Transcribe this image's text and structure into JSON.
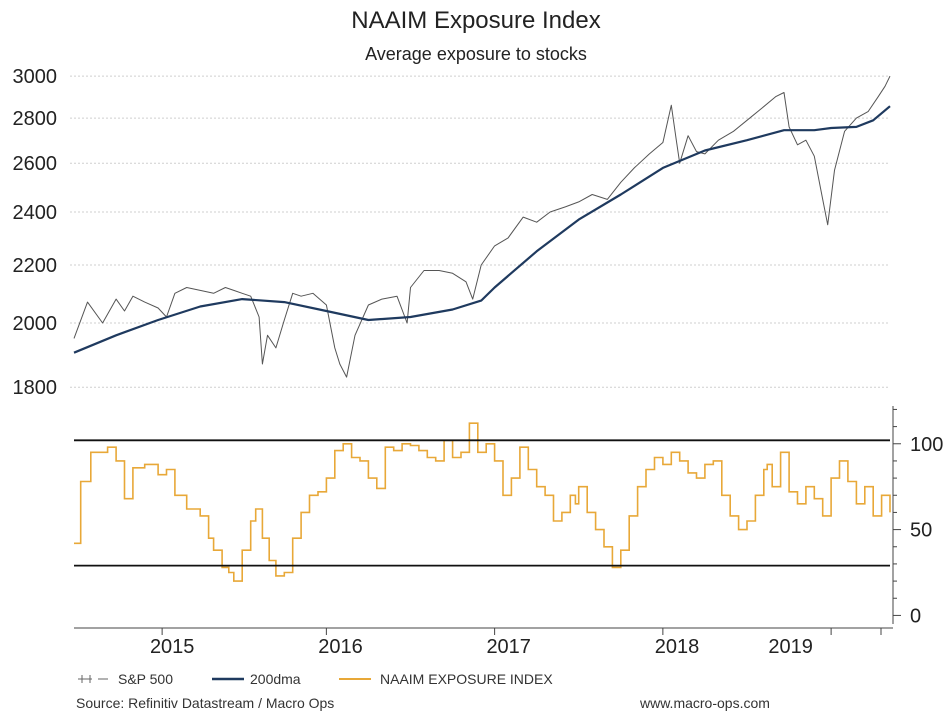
{
  "chart_data": [
    {
      "type": "line",
      "title": "NAAIM Exposure Index",
      "subtitle": "Average exposure to stocks",
      "ylim": [
        1780,
        3050
      ],
      "yticks": [
        1800,
        2000,
        2200,
        2400,
        2600,
        2800,
        3000
      ],
      "x_range": [
        2014.5,
        2019.35
      ],
      "series": [
        {
          "name": "S&P 500",
          "color": "#555555",
          "x": [
            2014.5,
            2014.58,
            2014.67,
            2014.75,
            2014.8,
            2014.85,
            2014.92,
            2015.0,
            2015.05,
            2015.1,
            2015.17,
            2015.25,
            2015.33,
            2015.4,
            2015.45,
            2015.5,
            2015.55,
            2015.6,
            2015.62,
            2015.65,
            2015.7,
            2015.75,
            2015.8,
            2015.85,
            2015.92,
            2016.0,
            2016.05,
            2016.08,
            2016.12,
            2016.17,
            2016.25,
            2016.33,
            2016.42,
            2016.48,
            2016.5,
            2016.58,
            2016.67,
            2016.75,
            2016.83,
            2016.87,
            2016.92,
            2017.0,
            2017.08,
            2017.17,
            2017.25,
            2017.33,
            2017.42,
            2017.5,
            2017.58,
            2017.67,
            2017.75,
            2017.83,
            2017.92,
            2018.0,
            2018.05,
            2018.08,
            2018.1,
            2018.15,
            2018.2,
            2018.25,
            2018.33,
            2018.42,
            2018.5,
            2018.58,
            2018.67,
            2018.72,
            2018.75,
            2018.8,
            2018.85,
            2018.9,
            2018.95,
            2018.98,
            2019.02,
            2019.08,
            2019.15,
            2019.22,
            2019.28,
            2019.32,
            2019.35
          ],
          "values": [
            1950,
            2070,
            2000,
            2080,
            2040,
            2090,
            2070,
            2050,
            2020,
            2100,
            2120,
            2110,
            2100,
            2120,
            2110,
            2100,
            2090,
            2020,
            1870,
            1960,
            1920,
            2010,
            2100,
            2090,
            2100,
            2060,
            1920,
            1870,
            1830,
            1960,
            2060,
            2080,
            2090,
            2000,
            2120,
            2180,
            2180,
            2170,
            2140,
            2080,
            2200,
            2270,
            2300,
            2380,
            2360,
            2400,
            2420,
            2440,
            2470,
            2450,
            2520,
            2580,
            2640,
            2690,
            2860,
            2700,
            2600,
            2720,
            2650,
            2640,
            2700,
            2740,
            2790,
            2840,
            2900,
            2920,
            2760,
            2680,
            2700,
            2630,
            2450,
            2350,
            2570,
            2740,
            2800,
            2830,
            2900,
            2950,
            3000
          ]
        },
        {
          "name": "200dma",
          "color": "#1f3a5f",
          "x": [
            2014.5,
            2014.75,
            2015.0,
            2015.25,
            2015.5,
            2015.75,
            2016.0,
            2016.25,
            2016.5,
            2016.75,
            2016.92,
            2017.0,
            2017.25,
            2017.5,
            2017.75,
            2018.0,
            2018.25,
            2018.5,
            2018.72,
            2018.9,
            2019.0,
            2019.15,
            2019.25,
            2019.35
          ],
          "values": [
            1905,
            1960,
            2010,
            2055,
            2080,
            2070,
            2040,
            2010,
            2020,
            2045,
            2075,
            2120,
            2250,
            2370,
            2470,
            2580,
            2655,
            2700,
            2745,
            2745,
            2755,
            2760,
            2790,
            2855
          ]
        }
      ]
    },
    {
      "type": "line",
      "ylim": [
        -5,
        122
      ],
      "yticks": [
        0,
        50,
        100
      ],
      "x_range": [
        2014.5,
        2019.35
      ],
      "reference_lines": [
        102,
        29
      ],
      "categories": [
        "2015",
        "2016",
        "2017",
        "2018",
        "2019"
      ],
      "series": [
        {
          "name": "NAAIM EXPOSURE INDEX",
          "color": "#e8a838",
          "x": [
            2014.5,
            2014.54,
            2014.6,
            2014.7,
            2014.75,
            2014.8,
            2014.85,
            2014.92,
            2015.0,
            2015.05,
            2015.1,
            2015.17,
            2015.25,
            2015.3,
            2015.33,
            2015.38,
            2015.42,
            2015.45,
            2015.5,
            2015.55,
            2015.58,
            2015.62,
            2015.66,
            2015.7,
            2015.75,
            2015.8,
            2015.85,
            2015.9,
            2015.95,
            2016.0,
            2016.05,
            2016.1,
            2016.15,
            2016.2,
            2016.25,
            2016.3,
            2016.35,
            2016.4,
            2016.45,
            2016.5,
            2016.55,
            2016.6,
            2016.65,
            2016.7,
            2016.75,
            2016.8,
            2016.85,
            2016.9,
            2016.95,
            2017.0,
            2017.05,
            2017.1,
            2017.15,
            2017.2,
            2017.25,
            2017.3,
            2017.35,
            2017.4,
            2017.45,
            2017.48,
            2017.5,
            2017.55,
            2017.6,
            2017.65,
            2017.7,
            2017.75,
            2017.8,
            2017.85,
            2017.9,
            2017.95,
            2018.0,
            2018.05,
            2018.1,
            2018.15,
            2018.2,
            2018.25,
            2018.3,
            2018.35,
            2018.4,
            2018.45,
            2018.5,
            2018.55,
            2018.6,
            2018.62,
            2018.65,
            2018.7,
            2018.75,
            2018.8,
            2018.85,
            2018.9,
            2018.95,
            2019.0,
            2019.05,
            2019.1,
            2019.15,
            2019.2,
            2019.25,
            2019.3,
            2019.35
          ],
          "values": [
            42,
            78,
            95,
            98,
            90,
            68,
            86,
            88,
            82,
            85,
            70,
            62,
            58,
            45,
            38,
            28,
            25,
            20,
            38,
            55,
            62,
            45,
            32,
            23,
            25,
            45,
            60,
            70,
            72,
            80,
            96,
            100,
            92,
            90,
            80,
            74,
            98,
            96,
            100,
            99,
            96,
            92,
            90,
            102,
            92,
            95,
            112,
            95,
            100,
            90,
            70,
            80,
            98,
            85,
            75,
            70,
            55,
            60,
            70,
            65,
            75,
            60,
            50,
            40,
            28,
            38,
            58,
            75,
            85,
            92,
            88,
            95,
            90,
            83,
            80,
            88,
            90,
            70,
            58,
            50,
            55,
            70,
            85,
            88,
            75,
            95,
            72,
            65,
            75,
            68,
            58,
            80,
            90,
            78,
            65,
            75,
            58,
            70,
            60
          ]
        }
      ]
    }
  ],
  "legend": {
    "sp500": "S&P 500",
    "dma": "200dma",
    "naaim": "NAAIM EXPOSURE INDEX"
  },
  "footer": {
    "source": "Source: Refinitiv Datastream / Macro Ops",
    "website": "www.macro-ops.com"
  }
}
